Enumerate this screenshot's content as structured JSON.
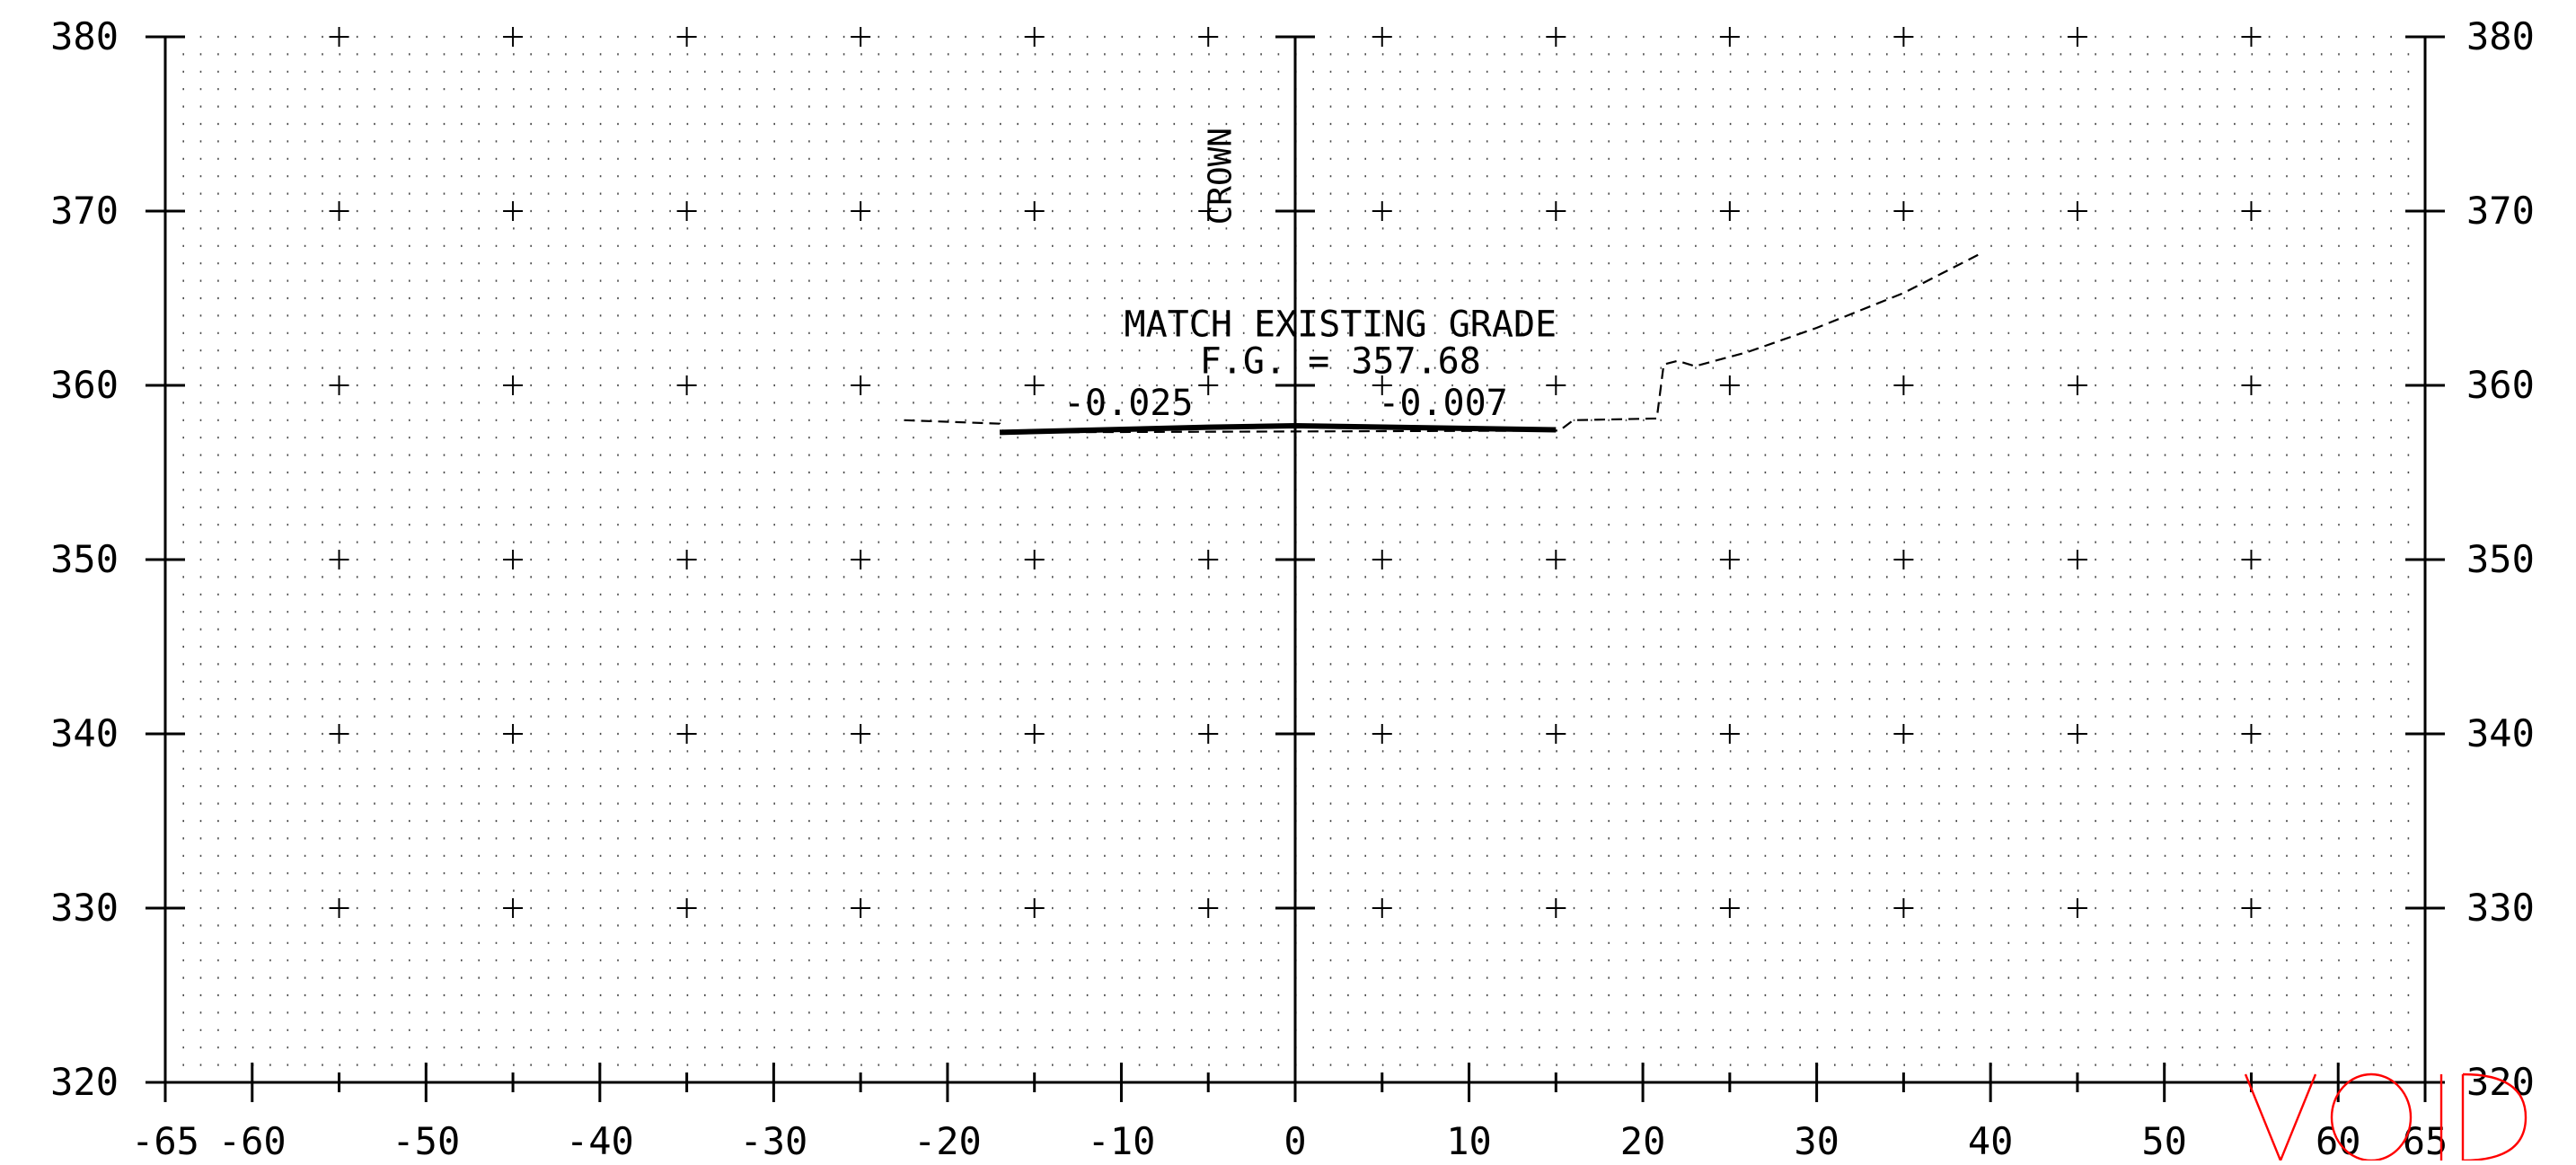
{
  "chart_data": {
    "type": "cross-section",
    "x_ticks": [
      -65,
      -60,
      -50,
      -40,
      -30,
      -20,
      -10,
      0,
      10,
      20,
      30,
      40,
      50,
      60,
      65
    ],
    "x_tick_labels": [
      "-65",
      "-60",
      "-50",
      "-40",
      "-30",
      "-20",
      "-10",
      "0",
      "10",
      "20",
      "30",
      "40",
      "50",
      "60",
      "65"
    ],
    "xlim": [
      -65,
      65
    ],
    "y_ticks": [
      320,
      330,
      340,
      350,
      360,
      370,
      380
    ],
    "y_tick_labels": [
      "320",
      "330",
      "340",
      "350",
      "360",
      "370",
      "380"
    ],
    "ylim": [
      320,
      380
    ],
    "grid": "dotted",
    "crosshair_x": [
      -55,
      -45,
      -35,
      -25,
      -15,
      -5,
      5,
      15,
      25,
      35,
      45,
      55
    ],
    "existing_ground": [
      [
        -22.5,
        358.0
      ],
      [
        -17,
        357.8
      ],
      [
        -16.8,
        357.3
      ],
      [
        15.2,
        357.4
      ],
      [
        16,
        358.0
      ],
      [
        20.8,
        358.1
      ],
      [
        21.2,
        361.2
      ],
      [
        22,
        361.4
      ],
      [
        23,
        361.1
      ],
      [
        26,
        361.9
      ],
      [
        30,
        363.3
      ],
      [
        35,
        365.3
      ],
      [
        39.5,
        367.6
      ]
    ],
    "proposed_grade": [
      [
        -17,
        357.3
      ],
      [
        -5,
        357.6
      ],
      [
        0,
        357.68
      ],
      [
        15,
        357.45
      ]
    ],
    "annotations": {
      "crown": "CROWN",
      "match_label": "MATCH EXISTING GRADE",
      "fg_label": "F.G. = 357.68",
      "left_slope": "-0.025",
      "right_slope": "-0.007"
    },
    "stamp": {
      "text": "VOID",
      "color": "#ff0000"
    }
  }
}
